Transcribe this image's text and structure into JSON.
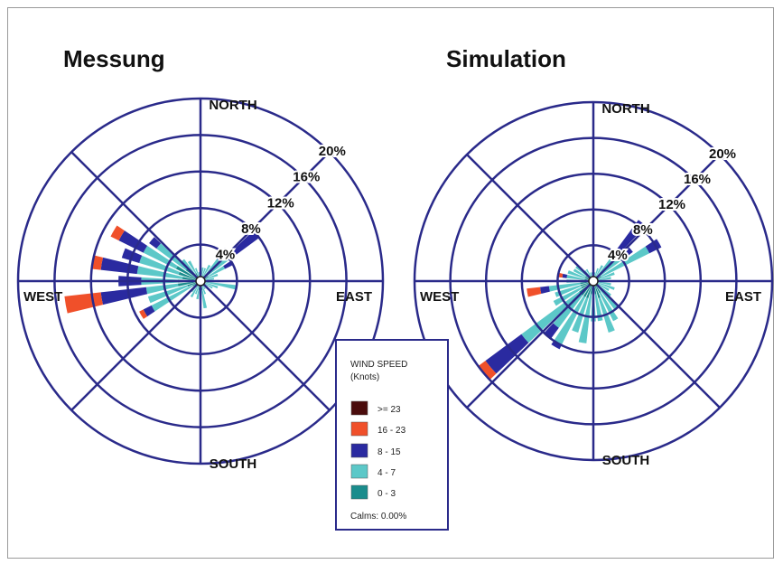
{
  "chart_data": [
    {
      "type": "wind-rose",
      "title": "Messung",
      "directions": {
        "north": "NORTH",
        "east": "EAST",
        "south": "SOUTH",
        "west": "WEST"
      },
      "ring_labels": [
        "4%",
        "8%",
        "12%",
        "16%",
        "20%"
      ],
      "rmax": 20,
      "speed_classes": [
        "0 - 3",
        "4 - 7",
        "8 - 15",
        "16 - 23",
        ">= 23"
      ],
      "sectors": [
        {
          "dir": 0,
          "values": [
            0.5,
            0.5,
            0,
            0,
            0
          ]
        },
        {
          "dir": 10,
          "values": [
            0.5,
            1.0,
            0,
            0,
            0
          ]
        },
        {
          "dir": 20,
          "values": [
            0.5,
            1.0,
            0,
            0,
            0
          ]
        },
        {
          "dir": 30,
          "values": [
            0.5,
            1.5,
            0,
            0,
            0
          ]
        },
        {
          "dir": 40,
          "values": [
            1.0,
            2.0,
            1.5,
            0,
            0
          ]
        },
        {
          "dir": 50,
          "values": [
            1.0,
            3.0,
            4.0,
            0,
            0
          ]
        },
        {
          "dir": 60,
          "values": [
            1.0,
            2.0,
            1.0,
            0,
            0
          ]
        },
        {
          "dir": 70,
          "values": [
            0.5,
            1.5,
            0,
            0,
            0
          ]
        },
        {
          "dir": 80,
          "values": [
            0.5,
            1.0,
            0,
            0,
            0
          ]
        },
        {
          "dir": 90,
          "values": [
            0.5,
            1.5,
            0,
            0,
            0
          ]
        },
        {
          "dir": 100,
          "values": [
            0.5,
            3.5,
            0,
            0,
            0
          ]
        },
        {
          "dir": 110,
          "values": [
            0.5,
            1.5,
            0,
            0,
            0
          ]
        },
        {
          "dir": 120,
          "values": [
            0.5,
            1.0,
            0,
            0,
            0
          ]
        },
        {
          "dir": 130,
          "values": [
            0.5,
            0.5,
            0,
            0,
            0
          ]
        },
        {
          "dir": 140,
          "values": [
            0.5,
            0.5,
            0,
            0,
            0
          ]
        },
        {
          "dir": 150,
          "values": [
            0.5,
            0.5,
            0,
            0,
            0
          ]
        },
        {
          "dir": 160,
          "values": [
            0.5,
            1.0,
            0,
            0,
            0
          ]
        },
        {
          "dir": 170,
          "values": [
            1.0,
            2.0,
            0,
            0,
            0
          ]
        },
        {
          "dir": 180,
          "values": [
            0.5,
            1.5,
            0,
            0,
            0
          ]
        },
        {
          "dir": 190,
          "values": [
            1.0,
            1.0,
            0,
            0,
            0
          ]
        },
        {
          "dir": 200,
          "values": [
            0.5,
            1.0,
            0,
            0,
            0
          ]
        },
        {
          "dir": 210,
          "values": [
            0.5,
            1.5,
            0,
            0,
            0
          ]
        },
        {
          "dir": 220,
          "values": [
            0.5,
            1.0,
            0,
            0,
            0
          ]
        },
        {
          "dir": 230,
          "values": [
            0.5,
            0.5,
            0,
            0,
            0
          ]
        },
        {
          "dir": 240,
          "values": [
            1.0,
            5.0,
            1.0,
            0.5,
            0
          ]
        },
        {
          "dir": 250,
          "values": [
            1.5,
            4.5,
            0,
            0,
            0
          ]
        },
        {
          "dir": 260,
          "values": [
            2.5,
            3.5,
            5.0,
            4.0,
            0
          ]
        },
        {
          "dir": 270,
          "values": [
            2.5,
            4.0,
            2.5,
            0,
            0
          ]
        },
        {
          "dir": 280,
          "values": [
            2.0,
            5.0,
            4.0,
            1.0,
            0
          ]
        },
        {
          "dir": 290,
          "values": [
            2.5,
            4.5,
            2.0,
            0,
            0
          ]
        },
        {
          "dir": 300,
          "values": [
            3.0,
            4.0,
            3.0,
            1.0,
            0
          ]
        },
        {
          "dir": 310,
          "values": [
            2.0,
            4.0,
            1.0,
            0,
            0
          ]
        },
        {
          "dir": 320,
          "values": [
            1.0,
            2.0,
            0,
            0,
            0
          ]
        },
        {
          "dir": 330,
          "values": [
            1.0,
            1.5,
            0,
            0,
            0
          ]
        },
        {
          "dir": 340,
          "values": [
            0.5,
            1.0,
            0,
            0,
            0
          ]
        },
        {
          "dir": 350,
          "values": [
            0.5,
            0.5,
            0,
            0,
            0
          ]
        }
      ]
    },
    {
      "type": "wind-rose",
      "title": "Simulation",
      "directions": {
        "north": "NORTH",
        "east": "EAST",
        "south": "SOUTH",
        "west": "WEST"
      },
      "ring_labels": [
        "4%",
        "8%",
        "12%",
        "16%",
        "20%"
      ],
      "rmax": 20,
      "speed_classes": [
        "0 - 3",
        "4 - 7",
        "8 - 15",
        "16 - 23",
        ">= 23"
      ],
      "sectors": [
        {
          "dir": 0,
          "values": [
            0.5,
            0.5,
            0,
            0,
            0
          ]
        },
        {
          "dir": 10,
          "values": [
            0.5,
            0.5,
            0,
            0,
            0
          ]
        },
        {
          "dir": 20,
          "values": [
            0.5,
            1.0,
            0,
            0,
            0
          ]
        },
        {
          "dir": 30,
          "values": [
            0.5,
            1.5,
            0,
            0,
            0
          ]
        },
        {
          "dir": 40,
          "values": [
            1.0,
            3.0,
            4.5,
            0,
            0
          ]
        },
        {
          "dir": 50,
          "values": [
            1.0,
            3.5,
            1.0,
            0,
            0
          ]
        },
        {
          "dir": 60,
          "values": [
            1.0,
            6.0,
            1.5,
            0,
            0
          ]
        },
        {
          "dir": 70,
          "values": [
            0.5,
            2.0,
            0,
            0,
            0
          ]
        },
        {
          "dir": 80,
          "values": [
            0.5,
            1.5,
            0,
            0,
            0
          ]
        },
        {
          "dir": 90,
          "values": [
            0.5,
            1.0,
            0,
            0,
            0
          ]
        },
        {
          "dir": 100,
          "values": [
            0.5,
            1.5,
            0,
            0,
            0
          ]
        },
        {
          "dir": 110,
          "values": [
            0.5,
            2.0,
            0,
            0,
            0
          ]
        },
        {
          "dir": 120,
          "values": [
            0.5,
            1.5,
            0,
            0,
            0
          ]
        },
        {
          "dir": 130,
          "values": [
            1.0,
            1.5,
            0,
            0,
            0
          ]
        },
        {
          "dir": 140,
          "values": [
            1.0,
            3.0,
            0,
            0,
            0
          ]
        },
        {
          "dir": 150,
          "values": [
            1.5,
            3.5,
            0,
            0,
            0
          ]
        },
        {
          "dir": 160,
          "values": [
            2.0,
            4.0,
            0,
            0,
            0
          ]
        },
        {
          "dir": 170,
          "values": [
            1.5,
            3.0,
            0,
            0,
            0
          ]
        },
        {
          "dir": 180,
          "values": [
            2.0,
            2.5,
            0,
            0,
            0
          ]
        },
        {
          "dir": 190,
          "values": [
            1.5,
            5.5,
            0,
            0,
            0
          ]
        },
        {
          "dir": 200,
          "values": [
            2.0,
            4.0,
            0,
            0,
            0
          ]
        },
        {
          "dir": 210,
          "values": [
            2.0,
            6.0,
            0.5,
            0,
            0
          ]
        },
        {
          "dir": 220,
          "values": [
            2.0,
            4.5,
            1.5,
            0,
            0
          ]
        },
        {
          "dir": 230,
          "values": [
            2.0,
            8.0,
            5.0,
            1.0,
            0
          ]
        },
        {
          "dir": 240,
          "values": [
            1.5,
            3.5,
            0,
            0,
            0
          ]
        },
        {
          "dir": 250,
          "values": [
            1.5,
            3.0,
            0,
            0,
            0
          ]
        },
        {
          "dir": 260,
          "values": [
            1.5,
            3.5,
            1.0,
            1.5,
            0
          ]
        },
        {
          "dir": 270,
          "values": [
            1.0,
            2.0,
            0,
            0,
            0
          ]
        },
        {
          "dir": 280,
          "values": [
            1.0,
            2.0,
            0.5,
            0.5,
            0
          ]
        },
        {
          "dir": 290,
          "values": [
            1.0,
            2.0,
            0,
            0,
            0
          ]
        },
        {
          "dir": 300,
          "values": [
            1.0,
            1.5,
            0,
            0,
            0
          ]
        },
        {
          "dir": 310,
          "values": [
            1.0,
            1.5,
            0,
            0,
            0
          ]
        },
        {
          "dir": 320,
          "values": [
            0.5,
            1.0,
            0,
            0,
            0
          ]
        },
        {
          "dir": 330,
          "values": [
            0.5,
            1.0,
            0,
            0,
            0
          ]
        },
        {
          "dir": 340,
          "values": [
            0.5,
            0.5,
            0,
            0,
            0
          ]
        },
        {
          "dir": 350,
          "values": [
            0.5,
            0.5,
            0,
            0,
            0
          ]
        }
      ]
    }
  ],
  "legend": {
    "title_line1": "WIND SPEED",
    "title_line2": "(Knots)",
    "items": [
      {
        "label": ">= 23",
        "color": "#4a0c0c"
      },
      {
        "label": "16 - 23",
        "color": "#f0502a"
      },
      {
        "label": "8 - 15",
        "color": "#2a2aa0"
      },
      {
        "label": "4 - 7",
        "color": "#5cc8c8"
      },
      {
        "label": "0 - 3",
        "color": "#1a8c8c"
      }
    ],
    "calms": "Calms: 0.00%"
  },
  "colors": {
    "grid": "#2a2a8a",
    "speed": [
      "#1a8c8c",
      "#5cc8c8",
      "#2a2aa0",
      "#f0502a",
      "#4a0c0c"
    ]
  }
}
